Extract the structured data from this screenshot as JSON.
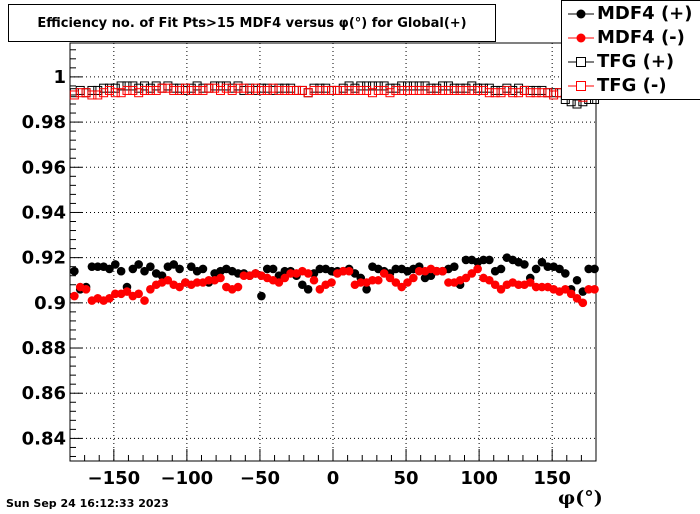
{
  "chart_data": {
    "type": "scatter",
    "title": "Efficiency no. of Fit Pts>15 MDF4 versus φ(°) for Global(+)",
    "xlabel": "φ(°)",
    "xlabel_main": "φ",
    "xlabel_unit": "(°)",
    "xlim": [
      -180,
      180
    ],
    "ylim": [
      0.83,
      1.015
    ],
    "x_ticks": [
      -150,
      -100,
      -50,
      0,
      50,
      100,
      150
    ],
    "x_tick_labels": [
      "−150",
      "−100",
      "−50",
      "0",
      "50",
      "100",
      "150"
    ],
    "y_ticks": [
      0.84,
      0.86,
      0.88,
      0.9,
      0.92,
      0.94,
      0.96,
      0.98,
      1.0
    ],
    "y_tick_labels": [
      "0.84",
      "0.86",
      "0.88",
      "0.9",
      "0.92",
      "0.94",
      "0.96",
      "0.98",
      "1"
    ],
    "legend_position": "top-right",
    "x": [
      -177,
      -173,
      -169,
      -165,
      -161,
      -157,
      -153,
      -149,
      -145,
      -141,
      -137,
      -133,
      -129,
      -125,
      -121,
      -117,
      -113,
      -109,
      -105,
      -101,
      -97,
      -93,
      -89,
      -85,
      -81,
      -77,
      -73,
      -69,
      -65,
      -61,
      -57,
      -53,
      -49,
      -45,
      -41,
      -37,
      -33,
      -29,
      -25,
      -21,
      -17,
      -13,
      -9,
      -5,
      -1,
      3,
      7,
      11,
      15,
      19,
      23,
      27,
      31,
      35,
      39,
      43,
      47,
      51,
      55,
      59,
      63,
      67,
      71,
      75,
      79,
      83,
      87,
      91,
      95,
      99,
      103,
      107,
      111,
      115,
      119,
      123,
      127,
      131,
      135,
      139,
      143,
      147,
      151,
      155,
      159,
      163,
      167,
      171,
      175,
      179
    ],
    "series": [
      {
        "name": "MDF4 (+)",
        "color": "#000000",
        "marker": "filled-circle",
        "values": [
          0.914,
          0.906,
          0.907,
          0.916,
          0.916,
          0.916,
          0.915,
          0.917,
          0.914,
          0.907,
          0.915,
          0.917,
          0.914,
          0.916,
          0.913,
          0.912,
          0.916,
          0.917,
          0.915,
          0.909,
          0.916,
          0.914,
          0.915,
          0.909,
          0.913,
          0.914,
          0.915,
          0.914,
          0.913,
          0.913,
          0.912,
          0.913,
          0.903,
          0.915,
          0.915,
          0.912,
          0.914,
          0.914,
          0.912,
          0.908,
          0.906,
          0.913,
          0.915,
          0.915,
          0.914,
          0.914,
          0.914,
          0.915,
          0.913,
          0.911,
          0.906,
          0.916,
          0.915,
          0.914,
          0.913,
          0.915,
          0.915,
          0.914,
          0.915,
          0.916,
          0.911,
          0.912,
          0.914,
          0.914,
          0.915,
          0.916,
          0.908,
          0.919,
          0.919,
          0.918,
          0.919,
          0.919,
          0.914,
          0.915,
          0.92,
          0.919,
          0.918,
          0.917,
          0.911,
          0.915,
          0.918,
          0.916,
          0.916,
          0.915,
          0.913,
          0.906,
          0.91,
          0.905,
          0.915,
          0.915
        ]
      },
      {
        "name": "MDF4 (-)",
        "color": "#ff0000",
        "marker": "filled-circle",
        "values": [
          0.903,
          0.907,
          0.906,
          0.901,
          0.902,
          0.901,
          0.902,
          0.904,
          0.904,
          0.905,
          0.903,
          0.904,
          0.901,
          0.906,
          0.908,
          0.909,
          0.91,
          0.908,
          0.907,
          0.909,
          0.908,
          0.909,
          0.909,
          0.91,
          0.91,
          0.911,
          0.907,
          0.906,
          0.907,
          0.912,
          0.912,
          0.913,
          0.912,
          0.911,
          0.91,
          0.909,
          0.911,
          0.913,
          0.913,
          0.914,
          0.913,
          0.91,
          0.906,
          0.908,
          0.909,
          0.913,
          0.914,
          0.914,
          0.908,
          0.909,
          0.909,
          0.91,
          0.91,
          0.913,
          0.911,
          0.909,
          0.907,
          0.909,
          0.911,
          0.914,
          0.914,
          0.915,
          0.914,
          0.914,
          0.909,
          0.909,
          0.91,
          0.911,
          0.913,
          0.915,
          0.911,
          0.91,
          0.908,
          0.906,
          0.908,
          0.909,
          0.908,
          0.908,
          0.909,
          0.907,
          0.907,
          0.907,
          0.906,
          0.905,
          0.906,
          0.904,
          0.902,
          0.9,
          0.906,
          0.906
        ]
      },
      {
        "name": "TFG (+)",
        "color": "#000000",
        "marker": "open-square",
        "values": [
          0.993,
          0.994,
          0.993,
          0.994,
          0.994,
          0.995,
          0.995,
          0.995,
          0.996,
          0.996,
          0.996,
          0.995,
          0.996,
          0.995,
          0.996,
          0.995,
          0.996,
          0.995,
          0.995,
          0.994,
          0.995,
          0.996,
          0.995,
          0.995,
          0.996,
          0.996,
          0.996,
          0.995,
          0.996,
          0.994,
          0.995,
          0.994,
          0.995,
          0.995,
          0.994,
          0.995,
          0.995,
          0.995,
          0.994,
          0.994,
          0.993,
          0.995,
          0.995,
          0.995,
          0.994,
          0.994,
          0.995,
          0.996,
          0.995,
          0.996,
          0.996,
          0.996,
          0.996,
          0.996,
          0.995,
          0.995,
          0.996,
          0.996,
          0.996,
          0.996,
          0.996,
          0.995,
          0.995,
          0.996,
          0.996,
          0.995,
          0.995,
          0.995,
          0.996,
          0.995,
          0.995,
          0.995,
          0.994,
          0.994,
          0.995,
          0.994,
          0.995,
          0.994,
          0.994,
          0.994,
          0.994,
          0.993,
          0.993,
          0.993,
          0.99,
          0.989,
          0.988,
          0.989,
          0.99,
          0.99
        ]
      },
      {
        "name": "TFG (-)",
        "color": "#ff0000",
        "marker": "open-square",
        "values": [
          0.992,
          0.993,
          0.993,
          0.992,
          0.992,
          0.993,
          0.994,
          0.993,
          0.993,
          0.994,
          0.994,
          0.993,
          0.994,
          0.994,
          0.994,
          0.995,
          0.995,
          0.994,
          0.994,
          0.995,
          0.994,
          0.994,
          0.994,
          0.995,
          0.995,
          0.994,
          0.995,
          0.994,
          0.995,
          0.995,
          0.994,
          0.995,
          0.994,
          0.994,
          0.995,
          0.994,
          0.994,
          0.994,
          0.994,
          0.994,
          0.993,
          0.994,
          0.994,
          0.994,
          0.994,
          0.994,
          0.994,
          0.994,
          0.994,
          0.994,
          0.994,
          0.993,
          0.994,
          0.994,
          0.993,
          0.994,
          0.994,
          0.994,
          0.994,
          0.994,
          0.994,
          0.994,
          0.994,
          0.994,
          0.994,
          0.994,
          0.994,
          0.994,
          0.994,
          0.994,
          0.994,
          0.993,
          0.993,
          0.993,
          0.994,
          0.993,
          0.993,
          0.994,
          0.993,
          0.993,
          0.993,
          0.993,
          0.992,
          0.993,
          0.993,
          0.992,
          0.992,
          0.991,
          0.992,
          0.992
        ]
      }
    ]
  },
  "footer": {
    "timestamp": "Sun Sep 24 16:12:33 2023"
  }
}
